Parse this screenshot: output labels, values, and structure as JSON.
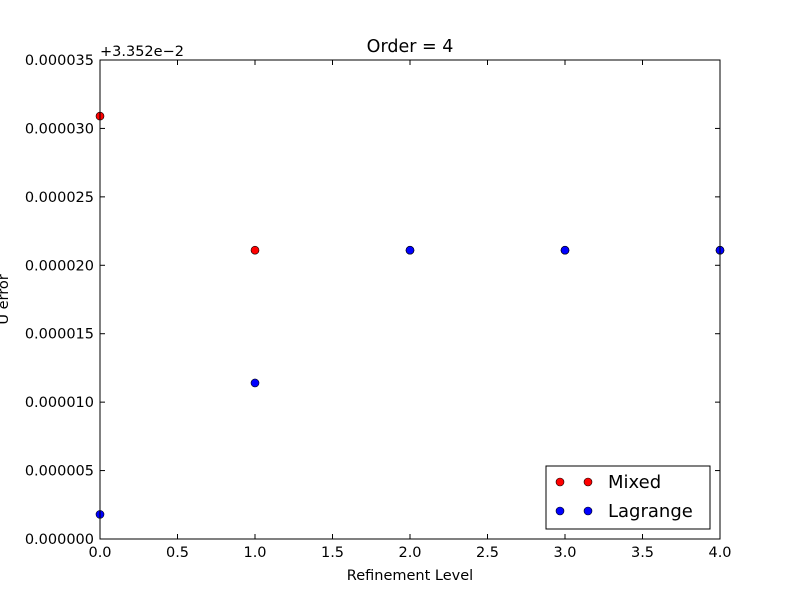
{
  "chart_data": {
    "type": "scatter",
    "title": "Order = 4",
    "xlabel": "Refinement Level",
    "ylabel": "U error",
    "y_offset_label": "+3.352e−2",
    "xlim": [
      0,
      4
    ],
    "ylim": [
      0,
      3.5e-05
    ],
    "x_ticks": [
      0,
      0.5,
      1,
      1.5,
      2,
      2.5,
      3,
      3.5,
      4
    ],
    "x_tick_labels": [
      "0.0",
      "0.5",
      "1.0",
      "1.5",
      "2.0",
      "2.5",
      "3.0",
      "3.5",
      "4.0"
    ],
    "y_ticks": [
      0,
      5e-06,
      1e-05,
      1.5e-05,
      2e-05,
      2.5e-05,
      3e-05,
      3.5e-05
    ],
    "y_tick_labels": [
      "0.000000",
      "0.000005",
      "0.000010",
      "0.000015",
      "0.000020",
      "0.000025",
      "0.000030",
      "0.000035"
    ],
    "grid": false,
    "legend_position": "lower-right",
    "series": [
      {
        "name": "Mixed",
        "color": "#ff0000",
        "x": [
          0,
          1,
          2,
          3,
          4
        ],
        "y": [
          3.09e-05,
          2.11e-05,
          2.11e-05,
          2.11e-05,
          2.11e-05
        ]
      },
      {
        "name": "Lagrange",
        "color": "#0000ff",
        "x": [
          0,
          1,
          2,
          3,
          4
        ],
        "y": [
          1.8e-06,
          1.14e-05,
          2.11e-05,
          2.11e-05,
          2.11e-05
        ]
      }
    ]
  }
}
